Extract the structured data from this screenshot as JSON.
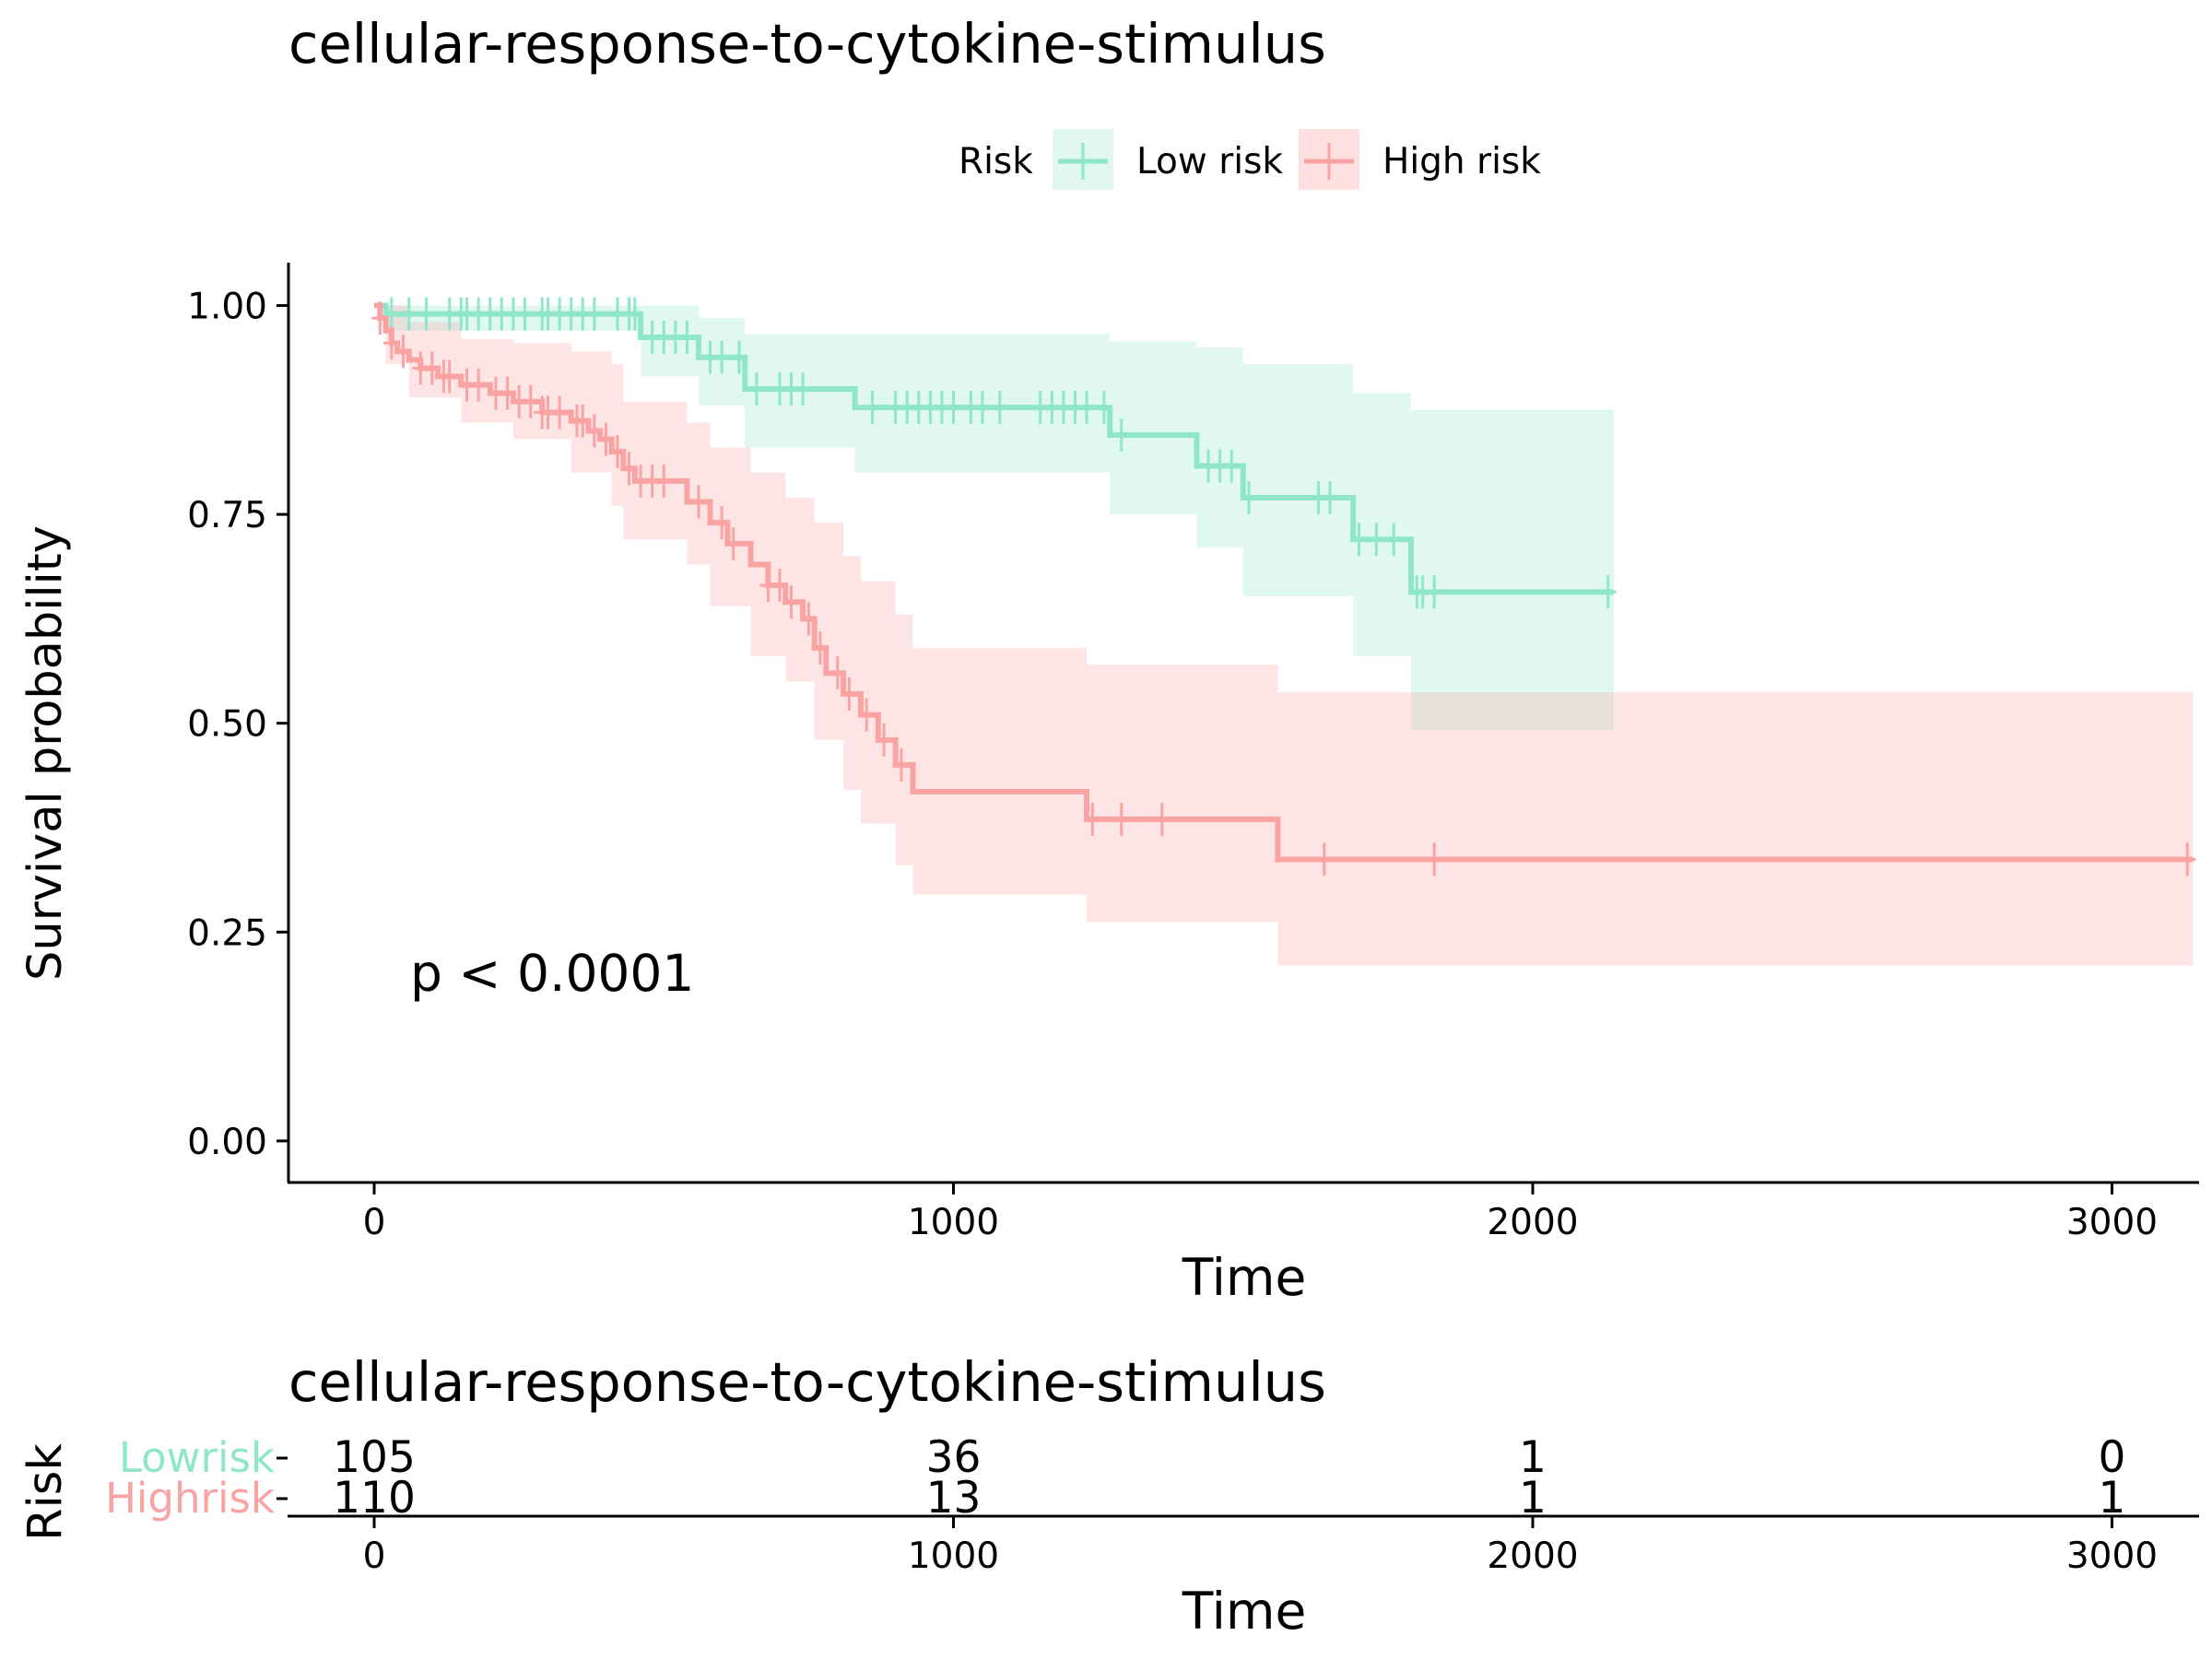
{
  "chart_data": {
    "type": "line",
    "title": "cellular-response-to-cytokine-stimulus",
    "xlabel": "Time",
    "ylabel": "Survival probability",
    "xlim": [
      -150,
      3140
    ],
    "ylim": [
      -0.05,
      1.05
    ],
    "x_ticks": [
      0,
      1000,
      2000,
      3000
    ],
    "x_tick_labels": [
      "0",
      "1000",
      "2000",
      "3000"
    ],
    "y_ticks": [
      0,
      0.25,
      0.5,
      0.75,
      1.0
    ],
    "y_tick_labels": [
      "0.00",
      "0.25",
      "0.50",
      "0.75",
      "1.00"
    ],
    "legend": {
      "title": "Risk",
      "position": "top"
    },
    "annotation": "p < 0.0001",
    "series": [
      {
        "name": "Low risk",
        "color": "#8FE6C8",
        "band_color": "#E0F8EE",
        "end": 2140,
        "step_points": [
          [
            0,
            1.0
          ],
          [
            20,
            0.99
          ],
          [
            460,
            0.962
          ],
          [
            560,
            0.938
          ],
          [
            640,
            0.9
          ],
          [
            830,
            0.878
          ],
          [
            1270,
            0.845
          ],
          [
            1420,
            0.808
          ],
          [
            1500,
            0.77
          ],
          [
            1690,
            0.72
          ],
          [
            1790,
            0.657
          ]
        ],
        "lower": [
          [
            0,
            1.0
          ],
          [
            20,
            0.97
          ],
          [
            460,
            0.915
          ],
          [
            560,
            0.88
          ],
          [
            640,
            0.83
          ],
          [
            830,
            0.8
          ],
          [
            1270,
            0.75
          ],
          [
            1420,
            0.71
          ],
          [
            1500,
            0.652
          ],
          [
            1690,
            0.58
          ],
          [
            1790,
            0.492
          ]
        ],
        "upper": [
          [
            0,
            1.0
          ],
          [
            20,
            1.0
          ],
          [
            460,
            1.0
          ],
          [
            560,
            0.985
          ],
          [
            640,
            0.966
          ],
          [
            830,
            0.966
          ],
          [
            1270,
            0.957
          ],
          [
            1420,
            0.95
          ],
          [
            1500,
            0.93
          ],
          [
            1690,
            0.895
          ],
          [
            1790,
            0.875
          ]
        ],
        "censor_times": [
          30,
          60,
          90,
          130,
          150,
          160,
          180,
          200,
          220,
          240,
          260,
          290,
          300,
          320,
          340,
          360,
          380,
          420,
          440,
          450,
          480,
          500,
          520,
          540,
          580,
          600,
          630,
          660,
          700,
          720,
          740,
          860,
          900,
          920,
          940,
          960,
          980,
          1000,
          1030,
          1050,
          1080,
          1150,
          1170,
          1190,
          1210,
          1230,
          1260,
          1290,
          1440,
          1460,
          1480,
          1510,
          1630,
          1650,
          1700,
          1730,
          1760,
          1800,
          1810,
          1830,
          2130
        ]
      },
      {
        "name": "High risk",
        "color": "#F9A3A3",
        "band_color": "#FFE0E0",
        "end": 3140,
        "step_points": [
          [
            0,
            1.0
          ],
          [
            10,
            0.985
          ],
          [
            20,
            0.97
          ],
          [
            30,
            0.955
          ],
          [
            40,
            0.945
          ],
          [
            60,
            0.935
          ],
          [
            80,
            0.925
          ],
          [
            110,
            0.915
          ],
          [
            150,
            0.905
          ],
          [
            200,
            0.895
          ],
          [
            240,
            0.885
          ],
          [
            290,
            0.872
          ],
          [
            340,
            0.862
          ],
          [
            370,
            0.85
          ],
          [
            390,
            0.84
          ],
          [
            410,
            0.825
          ],
          [
            430,
            0.805
          ],
          [
            450,
            0.79
          ],
          [
            540,
            0.765
          ],
          [
            580,
            0.74
          ],
          [
            610,
            0.715
          ],
          [
            650,
            0.69
          ],
          [
            680,
            0.665
          ],
          [
            710,
            0.645
          ],
          [
            740,
            0.625
          ],
          [
            760,
            0.59
          ],
          [
            780,
            0.56
          ],
          [
            810,
            0.535
          ],
          [
            840,
            0.51
          ],
          [
            870,
            0.48
          ],
          [
            900,
            0.45
          ],
          [
            930,
            0.418
          ],
          [
            1230,
            0.385
          ],
          [
            1560,
            0.337
          ]
        ],
        "lower": [
          [
            0,
            1.0
          ],
          [
            20,
            0.93
          ],
          [
            60,
            0.89
          ],
          [
            150,
            0.86
          ],
          [
            240,
            0.84
          ],
          [
            340,
            0.8
          ],
          [
            410,
            0.76
          ],
          [
            430,
            0.72
          ],
          [
            540,
            0.69
          ],
          [
            580,
            0.64
          ],
          [
            650,
            0.58
          ],
          [
            710,
            0.55
          ],
          [
            760,
            0.48
          ],
          [
            810,
            0.42
          ],
          [
            840,
            0.38
          ],
          [
            900,
            0.33
          ],
          [
            930,
            0.295
          ],
          [
            1230,
            0.262
          ],
          [
            1560,
            0.21
          ]
        ],
        "upper": [
          [
            0,
            1.0
          ],
          [
            20,
            1.0
          ],
          [
            60,
            0.98
          ],
          [
            150,
            0.96
          ],
          [
            240,
            0.955
          ],
          [
            340,
            0.945
          ],
          [
            410,
            0.93
          ],
          [
            430,
            0.885
          ],
          [
            540,
            0.86
          ],
          [
            580,
            0.83
          ],
          [
            650,
            0.8
          ],
          [
            710,
            0.77
          ],
          [
            760,
            0.74
          ],
          [
            810,
            0.7
          ],
          [
            840,
            0.67
          ],
          [
            900,
            0.63
          ],
          [
            930,
            0.59
          ],
          [
            1230,
            0.57
          ],
          [
            1560,
            0.537
          ]
        ],
        "censor_times": [
          10,
          30,
          50,
          80,
          100,
          120,
          130,
          160,
          180,
          210,
          230,
          250,
          270,
          290,
          300,
          320,
          350,
          360,
          380,
          400,
          420,
          440,
          460,
          480,
          500,
          560,
          600,
          620,
          680,
          700,
          720,
          750,
          770,
          800,
          820,
          850,
          880,
          910,
          1240,
          1290,
          1360,
          1640,
          1830,
          3130
        ]
      }
    ]
  },
  "risk_table": {
    "title": "cellular-response-to-cytokine-stimulus",
    "ylabel": "Risk",
    "xlabel": "Time",
    "times": [
      0,
      1000,
      2000,
      3000
    ],
    "tick_labels": [
      "0",
      "1000",
      "2000",
      "3000"
    ],
    "rows": [
      {
        "label": "Lowrisk",
        "color": "#8FE6C8",
        "counts": [
          "105",
          "36",
          "1",
          "0"
        ]
      },
      {
        "label": "Highrisk",
        "color": "#F9A3A3",
        "counts": [
          "110",
          "13",
          "1",
          "1"
        ]
      }
    ]
  }
}
